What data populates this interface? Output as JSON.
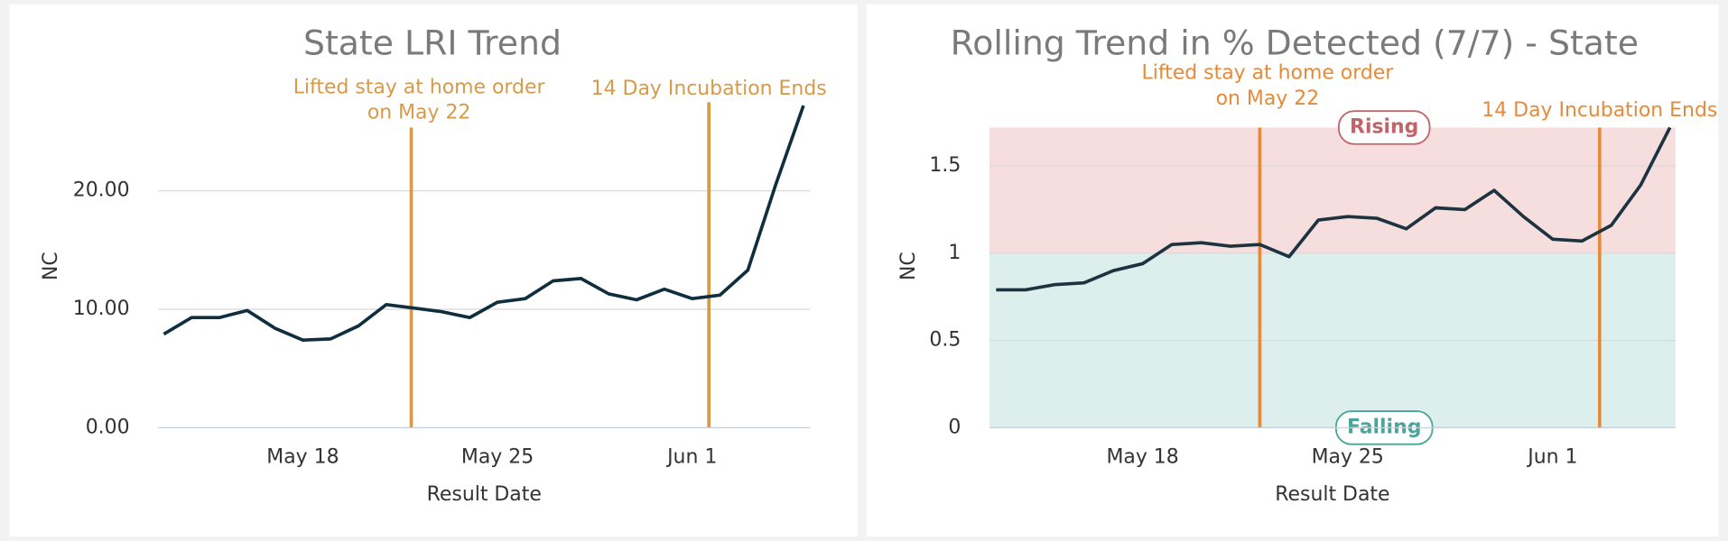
{
  "chart_data": [
    {
      "type": "line",
      "title": "State LRI Trend",
      "xlabel": "Result Date",
      "ylabel": "NC",
      "categories": [
        null,
        null,
        null,
        null,
        null,
        "May 18",
        null,
        null,
        null,
        null,
        null,
        null,
        "May 25",
        null,
        null,
        null,
        null,
        null,
        null,
        "Jun 1",
        null,
        null,
        null,
        null
      ],
      "series": [
        {
          "name": "NC",
          "color": "#0f2f3f",
          "values": [
            7.9,
            9.3,
            9.3,
            9.9,
            8.4,
            7.4,
            7.5,
            8.6,
            10.4,
            10.1,
            9.8,
            9.3,
            10.6,
            10.9,
            12.4,
            12.6,
            11.3,
            10.8,
            11.7,
            10.9,
            11.2,
            13.3,
            20.5,
            27.2
          ]
        }
      ],
      "ylim": [
        0,
        27.2
      ],
      "yticks": [
        {
          "value": 0,
          "label": "0.00"
        },
        {
          "value": 10,
          "label": "10.00"
        },
        {
          "value": 20,
          "label": "20.00"
        }
      ],
      "grid": true,
      "annotations": [
        {
          "x": 8.9,
          "text": [
            "Lifted stay at home order",
            "on May 22"
          ],
          "color": "#d69a4a"
        },
        {
          "x": 19.6,
          "text": [
            "14 Day Incubation Ends"
          ],
          "color": "#d69a4a"
        }
      ]
    },
    {
      "type": "line",
      "title": "Rolling Trend in % Detected (7/7) - State",
      "xlabel": "Result Date",
      "ylabel": "NC",
      "categories": [
        null,
        null,
        null,
        null,
        null,
        "May 18",
        null,
        null,
        null,
        null,
        null,
        null,
        "May 25",
        null,
        null,
        null,
        null,
        null,
        null,
        "Jun 1",
        null,
        null,
        null,
        null
      ],
      "series": [
        {
          "name": "NC",
          "color": "#1d3340",
          "values": [
            0.79,
            0.79,
            0.82,
            0.83,
            0.9,
            0.94,
            1.05,
            1.06,
            1.04,
            1.05,
            0.98,
            1.19,
            1.21,
            1.2,
            1.14,
            1.26,
            1.25,
            1.36,
            1.21,
            1.08,
            1.07,
            1.16,
            1.39,
            1.72
          ]
        }
      ],
      "ylim": [
        0,
        1.72
      ],
      "yticks": [
        0,
        0.5,
        1,
        1.5
      ],
      "grid": true,
      "bands": [
        {
          "label": "Rising",
          "from": 1,
          "to": 1.72,
          "color": "#f6dede",
          "text_color": "#c0646a"
        },
        {
          "label": "Falling",
          "from": 0,
          "to": 1,
          "color": "#dcefec",
          "text_color": "#4aa596"
        }
      ],
      "annotations": [
        {
          "x": 9.0,
          "text": [
            "Lifted stay at home order",
            "on May 22"
          ],
          "color": "#e58a3b"
        },
        {
          "x": 20.6,
          "text": [
            "14 Day Incubation Ends"
          ],
          "color": "#e58a3b"
        }
      ]
    }
  ]
}
